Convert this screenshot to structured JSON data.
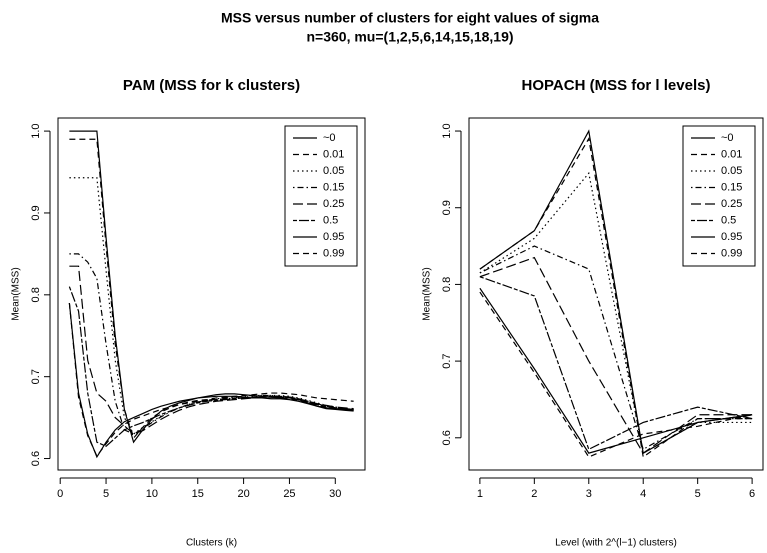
{
  "title": "MSS versus number of clusters for eight values of sigma",
  "subtitle": "n=360, mu=(1,2,5,6,14,15,18,19)",
  "chart_data": [
    {
      "type": "line",
      "title": "PAM (MSS for k clusters)",
      "xlabel": "Clusters (k)",
      "ylabel": "Mean(MSS)",
      "x": [
        1,
        2,
        3,
        4,
        5,
        6,
        7,
        8,
        9,
        10,
        11,
        12,
        13,
        14,
        15,
        16,
        17,
        18,
        19,
        20,
        21,
        22,
        23,
        24,
        25,
        26,
        27,
        28,
        29,
        30,
        31,
        32
      ],
      "xlim": [
        -0.24,
        33.24
      ],
      "xticks": [
        0,
        5,
        10,
        15,
        20,
        25,
        30
      ],
      "ylim": [
        0.586,
        1.016
      ],
      "yticks": [
        0.6,
        0.7,
        0.8,
        0.9,
        {
          "value": 1,
          "label": "1.0"
        }
      ],
      "legend": "top-right",
      "series": [
        {
          "name": "~0",
          "color": "#000000",
          "linestyle": "solid",
          "values": [
            1,
            1,
            1,
            1,
            0.87,
            0.75,
            0.66,
            0.62,
            0.635,
            0.648,
            0.658,
            0.664,
            0.668,
            0.671,
            0.674,
            0.676,
            0.678,
            0.679,
            0.679,
            0.678,
            0.677,
            0.676,
            0.675,
            0.674,
            0.674,
            0.672,
            0.668,
            0.664,
            0.661,
            0.66,
            0.659,
            0.658
          ]
        },
        {
          "name": "0.01",
          "color": "#000000",
          "linestyle": "dashed",
          "values": [
            0.99,
            0.99,
            0.99,
            0.99,
            0.86,
            0.74,
            0.66,
            0.625,
            0.638,
            0.65,
            0.657,
            0.662,
            0.666,
            0.669,
            0.671,
            0.672,
            0.674,
            0.675,
            0.676,
            0.677,
            0.678,
            0.679,
            0.68,
            0.68,
            0.679,
            0.678,
            0.676,
            0.674,
            0.673,
            0.672,
            0.671,
            0.67
          ]
        },
        {
          "name": "0.05",
          "color": "#000000",
          "linestyle": "dotted",
          "values": [
            0.943,
            0.943,
            0.943,
            0.943,
            0.83,
            0.72,
            0.65,
            0.63,
            0.638,
            0.645,
            0.652,
            0.658,
            0.662,
            0.666,
            0.669,
            0.671,
            0.672,
            0.673,
            0.674,
            0.675,
            0.676,
            0.677,
            0.677,
            0.677,
            0.676,
            0.674,
            0.671,
            0.668,
            0.665,
            0.663,
            0.661,
            0.66
          ]
        },
        {
          "name": "0.15",
          "color": "#000000",
          "linestyle": "dotdash",
          "values": [
            0.85,
            0.85,
            0.84,
            0.82,
            0.74,
            0.67,
            0.635,
            0.63,
            0.636,
            0.644,
            0.651,
            0.657,
            0.662,
            0.666,
            0.669,
            0.671,
            0.673,
            0.674,
            0.675,
            0.676,
            0.677,
            0.677,
            0.677,
            0.676,
            0.675,
            0.673,
            0.67,
            0.667,
            0.664,
            0.662,
            0.661,
            0.66
          ]
        },
        {
          "name": "0.25",
          "color": "#000000",
          "linestyle": "longdash",
          "values": [
            0.835,
            0.835,
            0.72,
            0.68,
            0.67,
            0.65,
            0.64,
            0.63,
            0.634,
            0.641,
            0.648,
            0.654,
            0.659,
            0.663,
            0.666,
            0.668,
            0.67,
            0.671,
            0.672,
            0.673,
            0.674,
            0.675,
            0.676,
            0.676,
            0.675,
            0.673,
            0.67,
            0.667,
            0.665,
            0.663,
            0.662,
            0.661
          ]
        },
        {
          "name": "0.5",
          "color": "#000000",
          "linestyle": "twodash",
          "values": [
            0.81,
            0.78,
            0.68,
            0.62,
            0.615,
            0.625,
            0.635,
            0.64,
            0.644,
            0.649,
            0.654,
            0.658,
            0.662,
            0.665,
            0.668,
            0.67,
            0.671,
            0.672,
            0.673,
            0.674,
            0.674,
            0.675,
            0.675,
            0.675,
            0.674,
            0.672,
            0.669,
            0.666,
            0.664,
            0.662,
            0.661,
            0.66
          ]
        },
        {
          "name": "0.95",
          "color": "#000000",
          "linestyle": "solid",
          "values": [
            0.79,
            0.68,
            0.63,
            0.602,
            0.62,
            0.635,
            0.645,
            0.65,
            0.655,
            0.66,
            0.664,
            0.667,
            0.67,
            0.672,
            0.674,
            0.675,
            0.676,
            0.676,
            0.676,
            0.675,
            0.674,
            0.674,
            0.673,
            0.673,
            0.672,
            0.67,
            0.667,
            0.664,
            0.662,
            0.661,
            0.66,
            0.659
          ]
        },
        {
          "name": "0.99",
          "color": "#000000",
          "linestyle": "dashed",
          "values": [
            0.79,
            0.675,
            0.628,
            0.603,
            0.618,
            0.632,
            0.642,
            0.648,
            0.652,
            0.656,
            0.66,
            0.663,
            0.666,
            0.668,
            0.67,
            0.671,
            0.672,
            0.673,
            0.674,
            0.674,
            0.675,
            0.675,
            0.675,
            0.674,
            0.673,
            0.671,
            0.668,
            0.665,
            0.663,
            0.661,
            0.66,
            0.659
          ]
        }
      ]
    },
    {
      "type": "line",
      "title": "HOPACH (MSS for l levels)",
      "xlabel": "Level (with 2^(l−1) clusters)",
      "ylabel": "Mean(MSS)",
      "x": [
        1,
        2,
        3,
        4,
        5,
        6
      ],
      "xlim": [
        0.8,
        6.2
      ],
      "xticks": [
        1,
        2,
        3,
        4,
        5,
        6
      ],
      "ylim": [
        0.558,
        1.017
      ],
      "yticks": [
        0.6,
        0.7,
        0.8,
        0.9,
        {
          "value": 1,
          "label": "1.0"
        }
      ],
      "legend": "top-right",
      "series": [
        {
          "name": "~0",
          "color": "#000000",
          "linestyle": "solid",
          "values": [
            0.82,
            0.87,
            1,
            0.58,
            0.62,
            0.63
          ]
        },
        {
          "name": "0.01",
          "color": "#000000",
          "linestyle": "dashed",
          "values": [
            0.82,
            0.87,
            0.99,
            0.575,
            0.625,
            0.625
          ]
        },
        {
          "name": "0.05",
          "color": "#000000",
          "linestyle": "dotted",
          "values": [
            0.815,
            0.86,
            0.945,
            0.58,
            0.62,
            0.62
          ]
        },
        {
          "name": "0.15",
          "color": "#000000",
          "linestyle": "dotdash",
          "values": [
            0.815,
            0.85,
            0.82,
            0.585,
            0.625,
            0.625
          ]
        },
        {
          "name": "0.25",
          "color": "#000000",
          "linestyle": "longdash",
          "values": [
            0.81,
            0.835,
            0.7,
            0.58,
            0.63,
            0.63
          ]
        },
        {
          "name": "0.5",
          "color": "#000000",
          "linestyle": "twodash",
          "values": [
            0.81,
            0.785,
            0.585,
            0.62,
            0.64,
            0.625
          ]
        },
        {
          "name": "0.95",
          "color": "#000000",
          "linestyle": "solid",
          "values": [
            0.795,
            0.69,
            0.58,
            0.6,
            0.62,
            0.63
          ]
        },
        {
          "name": "0.99",
          "color": "#000000",
          "linestyle": "dashed",
          "values": [
            0.79,
            0.685,
            0.575,
            0.605,
            0.615,
            0.63
          ]
        }
      ]
    }
  ]
}
